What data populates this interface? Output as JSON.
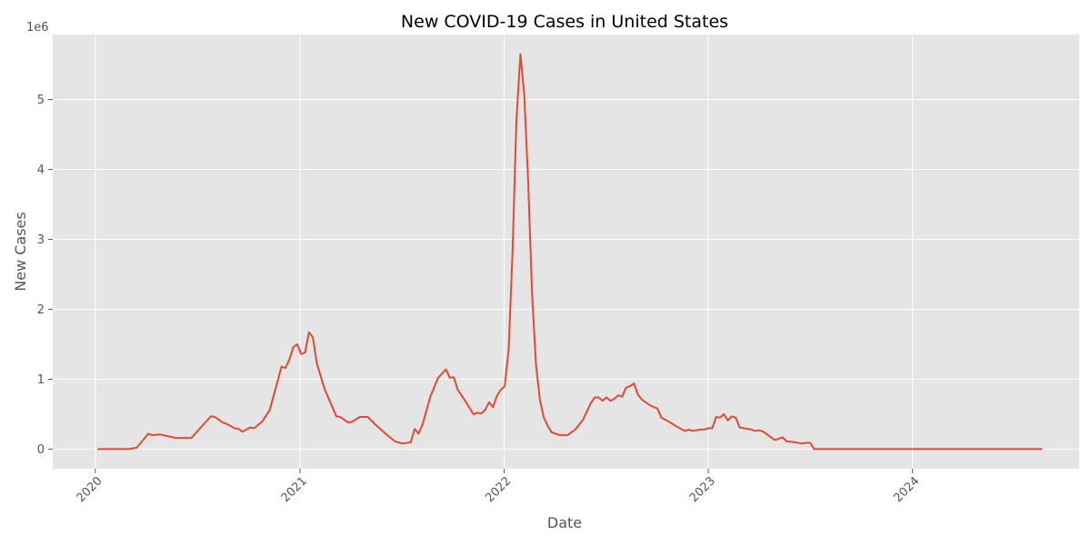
{
  "chart_data": {
    "type": "line",
    "title": "New COVID-19 Cases in United States",
    "xlabel": "Date",
    "ylabel": "New Cases",
    "y_scale_label": "1e6",
    "x_axis": "date",
    "xlim": [
      "2019-10-17",
      "2024-10-25"
    ],
    "ylim": [
      -280000,
      5930000
    ],
    "x_ticks": [
      {
        "date": "2020-01-01",
        "label": "2020"
      },
      {
        "date": "2021-01-01",
        "label": "2021"
      },
      {
        "date": "2022-01-01",
        "label": "2022"
      },
      {
        "date": "2023-01-01",
        "label": "2023"
      },
      {
        "date": "2024-01-01",
        "label": "2024"
      }
    ],
    "y_ticks": [
      {
        "value": 0,
        "label": "0"
      },
      {
        "value": 1000000,
        "label": "1"
      },
      {
        "value": 2000000,
        "label": "2"
      },
      {
        "value": 3000000,
        "label": "3"
      },
      {
        "value": 4000000,
        "label": "4"
      },
      {
        "value": 5000000,
        "label": "5"
      }
    ],
    "grid": true,
    "background": "#e5e5e5",
    "grid_color": "#ffffff",
    "line_color": "#e24a33",
    "series": [
      {
        "values": [
          [
            "2020-01-05",
            0
          ],
          [
            "2020-03-01",
            0
          ],
          [
            "2020-03-15",
            20000
          ],
          [
            "2020-04-05",
            220000
          ],
          [
            "2020-04-12",
            200000
          ],
          [
            "2020-04-26",
            210000
          ],
          [
            "2020-05-24",
            160000
          ],
          [
            "2020-06-21",
            160000
          ],
          [
            "2020-07-12",
            350000
          ],
          [
            "2020-07-26",
            470000
          ],
          [
            "2020-08-02",
            460000
          ],
          [
            "2020-08-16",
            380000
          ],
          [
            "2020-08-23",
            360000
          ],
          [
            "2020-09-06",
            300000
          ],
          [
            "2020-09-13",
            290000
          ],
          [
            "2020-09-20",
            250000
          ],
          [
            "2020-10-04",
            310000
          ],
          [
            "2020-10-11",
            300000
          ],
          [
            "2020-10-25",
            390000
          ],
          [
            "2020-11-08",
            560000
          ],
          [
            "2020-11-22",
            970000
          ],
          [
            "2020-11-29",
            1180000
          ],
          [
            "2020-12-06",
            1160000
          ],
          [
            "2020-12-13",
            1280000
          ],
          [
            "2020-12-20",
            1460000
          ],
          [
            "2020-12-27",
            1500000
          ],
          [
            "2021-01-03",
            1360000
          ],
          [
            "2021-01-10",
            1380000
          ],
          [
            "2021-01-17",
            1670000
          ],
          [
            "2021-01-24",
            1600000
          ],
          [
            "2021-01-31",
            1230000
          ],
          [
            "2021-02-14",
            860000
          ],
          [
            "2021-03-07",
            470000
          ],
          [
            "2021-03-14",
            460000
          ],
          [
            "2021-03-28",
            380000
          ],
          [
            "2021-04-04",
            390000
          ],
          [
            "2021-04-18",
            460000
          ],
          [
            "2021-05-02",
            460000
          ],
          [
            "2021-05-16",
            350000
          ],
          [
            "2021-06-06",
            200000
          ],
          [
            "2021-06-20",
            110000
          ],
          [
            "2021-07-04",
            80000
          ],
          [
            "2021-07-18",
            100000
          ],
          [
            "2021-07-25",
            290000
          ],
          [
            "2021-08-01",
            220000
          ],
          [
            "2021-08-08",
            350000
          ],
          [
            "2021-08-22",
            750000
          ],
          [
            "2021-09-05",
            1020000
          ],
          [
            "2021-09-19",
            1140000
          ],
          [
            "2021-09-26",
            1020000
          ],
          [
            "2021-10-03",
            1030000
          ],
          [
            "2021-10-10",
            850000
          ],
          [
            "2021-10-24",
            680000
          ],
          [
            "2021-11-07",
            500000
          ],
          [
            "2021-11-14",
            520000
          ],
          [
            "2021-11-21",
            510000
          ],
          [
            "2021-11-28",
            560000
          ],
          [
            "2021-12-05",
            670000
          ],
          [
            "2021-12-12",
            600000
          ],
          [
            "2021-12-19",
            760000
          ],
          [
            "2021-12-26",
            850000
          ],
          [
            "2022-01-02",
            900000
          ],
          [
            "2022-01-09",
            1410000
          ],
          [
            "2022-01-16",
            2800000
          ],
          [
            "2022-01-23",
            4700000
          ],
          [
            "2022-01-30",
            5650000
          ],
          [
            "2022-02-06",
            5050000
          ],
          [
            "2022-02-13",
            3800000
          ],
          [
            "2022-02-20",
            2200000
          ],
          [
            "2022-02-27",
            1200000
          ],
          [
            "2022-03-06",
            700000
          ],
          [
            "2022-03-13",
            450000
          ],
          [
            "2022-03-20",
            330000
          ],
          [
            "2022-03-27",
            240000
          ],
          [
            "2022-04-03",
            220000
          ],
          [
            "2022-04-10",
            200000
          ],
          [
            "2022-04-24",
            200000
          ],
          [
            "2022-05-08",
            280000
          ],
          [
            "2022-05-22",
            420000
          ],
          [
            "2022-06-05",
            660000
          ],
          [
            "2022-06-12",
            740000
          ],
          [
            "2022-06-19",
            740000
          ],
          [
            "2022-06-26",
            690000
          ],
          [
            "2022-07-03",
            740000
          ],
          [
            "2022-07-10",
            690000
          ],
          [
            "2022-07-17",
            720000
          ],
          [
            "2022-07-24",
            770000
          ],
          [
            "2022-07-31",
            750000
          ],
          [
            "2022-08-07",
            880000
          ],
          [
            "2022-08-14",
            900000
          ],
          [
            "2022-08-21",
            940000
          ],
          [
            "2022-08-28",
            780000
          ],
          [
            "2022-09-04",
            710000
          ],
          [
            "2022-09-18",
            630000
          ],
          [
            "2022-10-02",
            580000
          ],
          [
            "2022-10-09",
            450000
          ],
          [
            "2022-10-23",
            390000
          ],
          [
            "2022-11-06",
            320000
          ],
          [
            "2022-11-20",
            260000
          ],
          [
            "2022-11-27",
            280000
          ],
          [
            "2022-12-04",
            260000
          ],
          [
            "2022-12-18",
            280000
          ],
          [
            "2022-12-25",
            280000
          ],
          [
            "2023-01-01",
            300000
          ],
          [
            "2023-01-08",
            300000
          ],
          [
            "2023-01-15",
            460000
          ],
          [
            "2023-01-22",
            450000
          ],
          [
            "2023-01-29",
            500000
          ],
          [
            "2023-02-05",
            410000
          ],
          [
            "2023-02-12",
            470000
          ],
          [
            "2023-02-19",
            450000
          ],
          [
            "2023-02-26",
            310000
          ],
          [
            "2023-03-05",
            300000
          ],
          [
            "2023-03-19",
            280000
          ],
          [
            "2023-03-26",
            260000
          ],
          [
            "2023-04-02",
            270000
          ],
          [
            "2023-04-09",
            250000
          ],
          [
            "2023-04-30",
            130000
          ],
          [
            "2023-05-07",
            150000
          ],
          [
            "2023-05-14",
            170000
          ],
          [
            "2023-05-21",
            110000
          ],
          [
            "2023-06-04",
            100000
          ],
          [
            "2023-06-18",
            80000
          ],
          [
            "2023-06-25",
            90000
          ],
          [
            "2023-07-02",
            90000
          ],
          [
            "2023-07-09",
            0
          ],
          [
            "2024-08-20",
            0
          ]
        ]
      }
    ]
  }
}
